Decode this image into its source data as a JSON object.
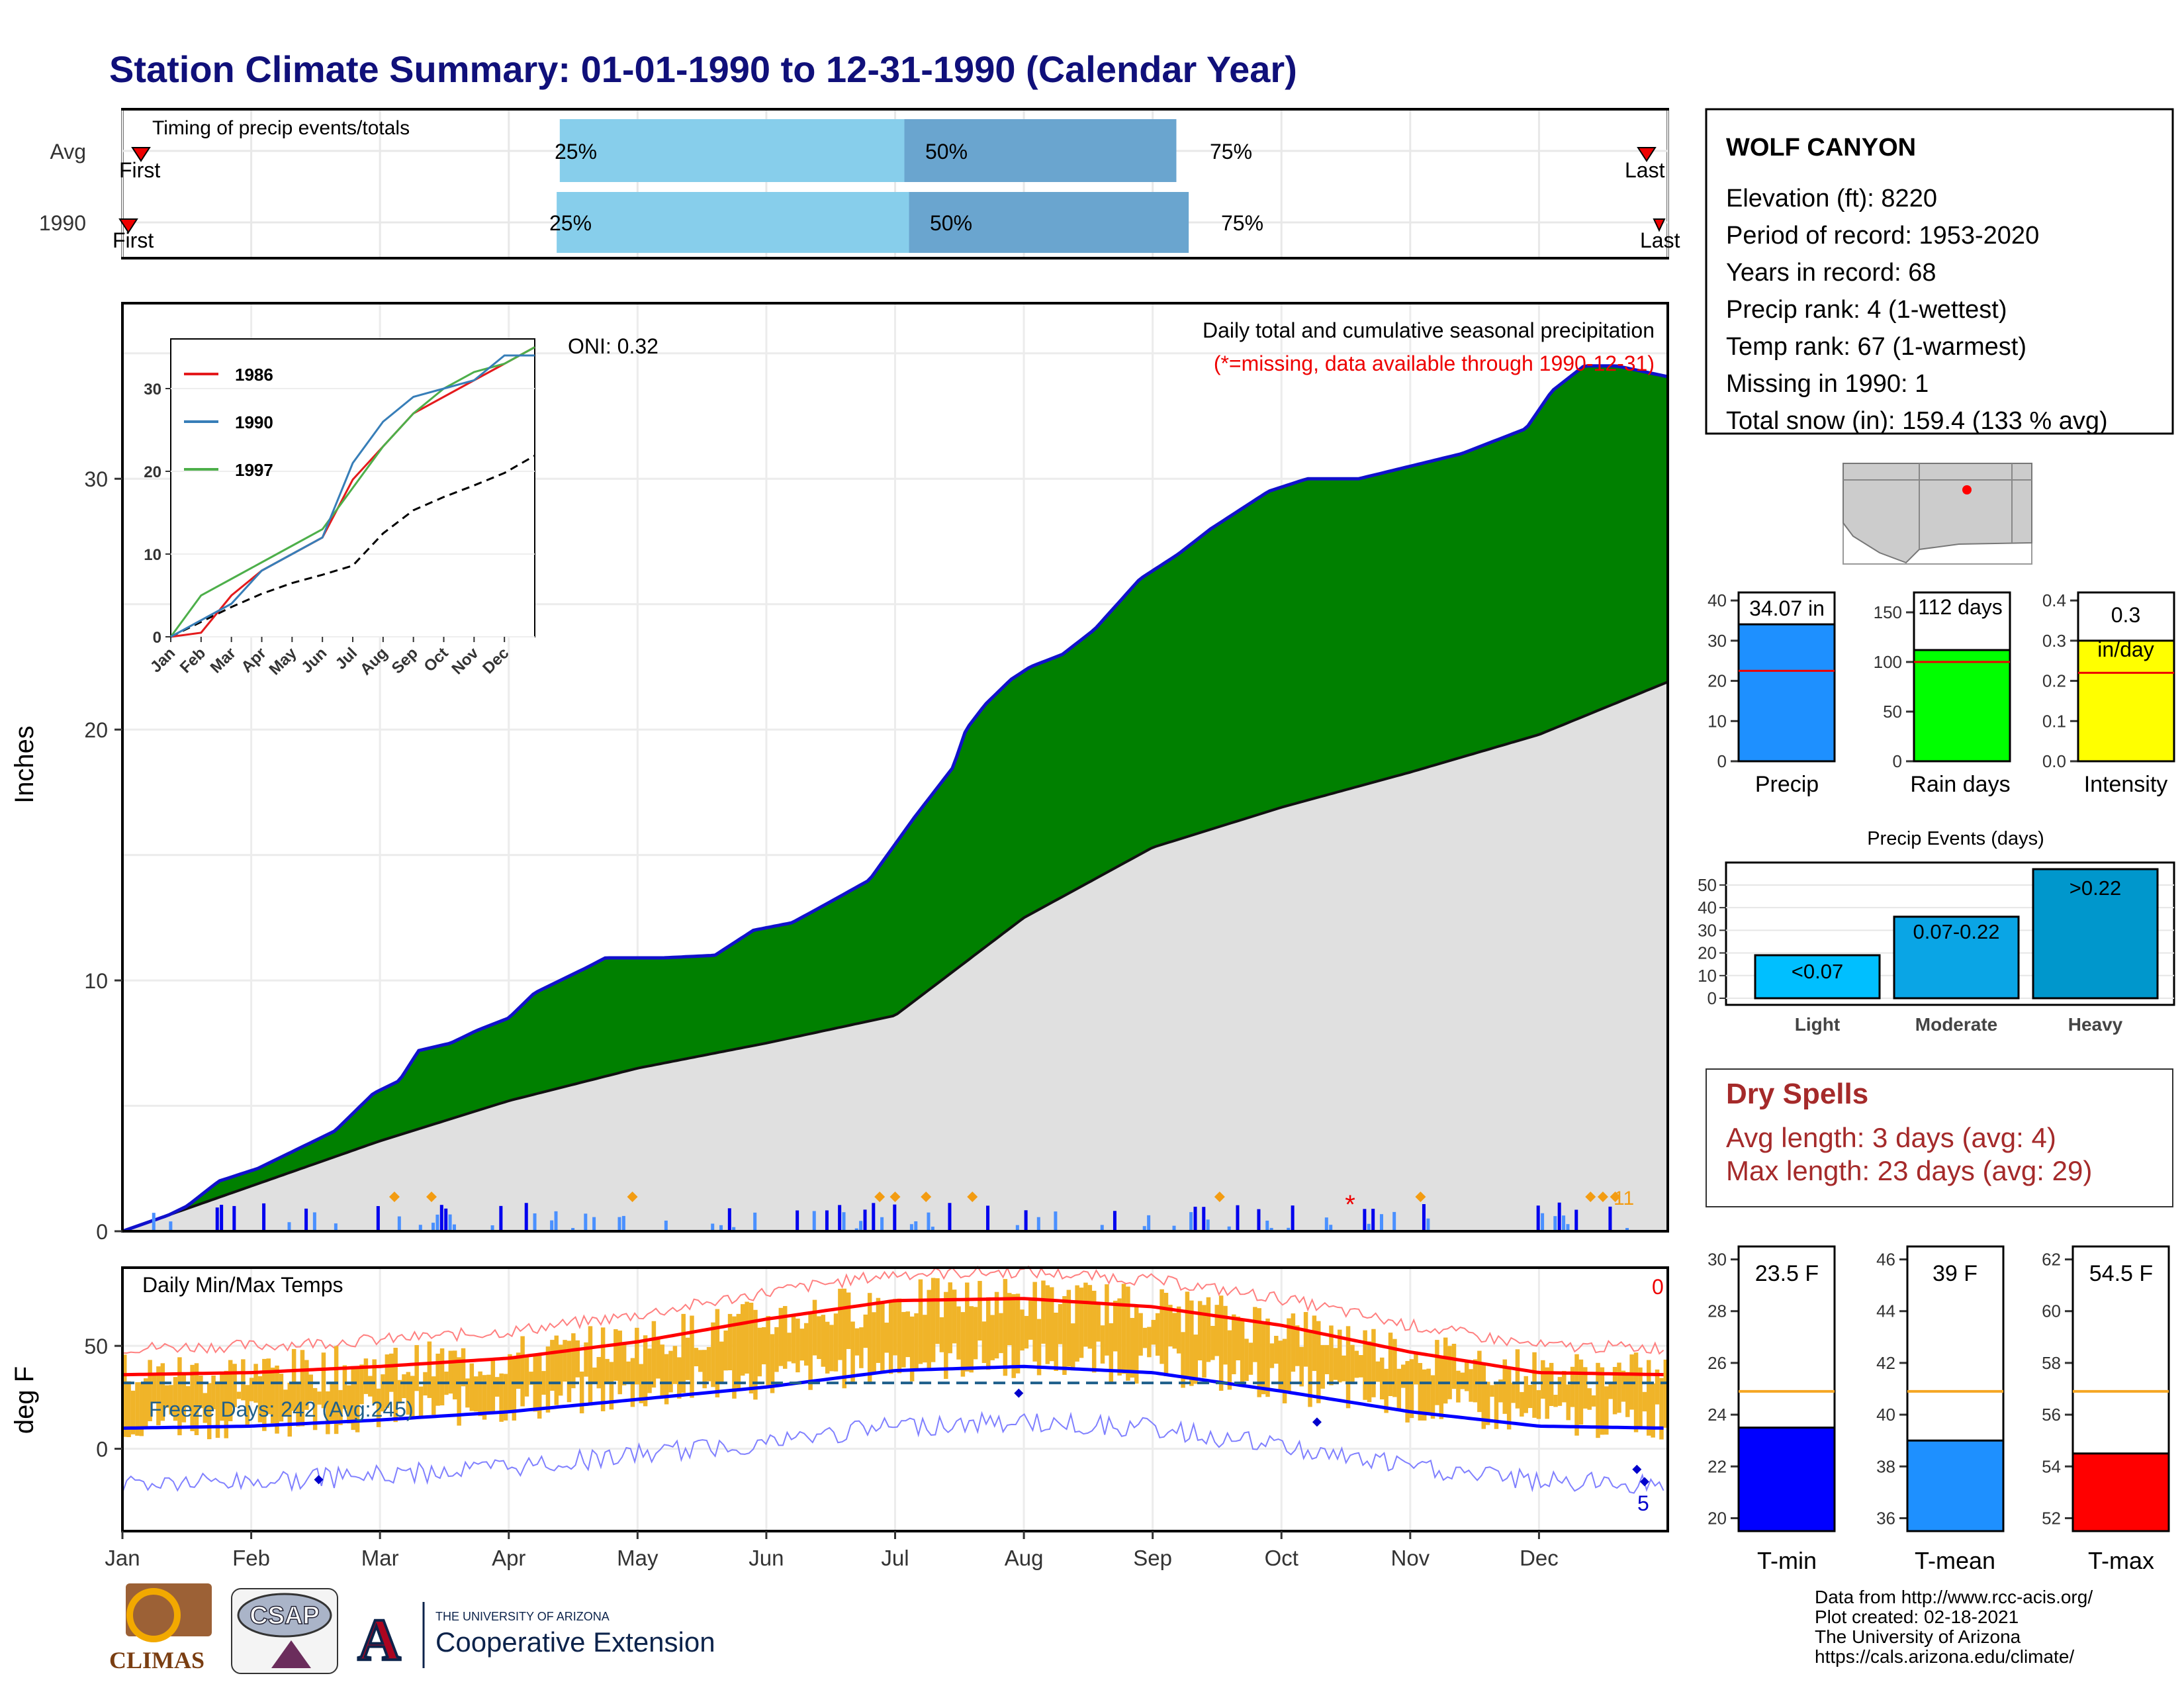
{
  "title": "Station Climate Summary: 01-01-1990 to 12-31-1990 (Calendar Year)",
  "months": [
    "Jan",
    "Feb",
    "Mar",
    "Apr",
    "May",
    "Jun",
    "Jul",
    "Aug",
    "Sep",
    "Oct",
    "Nov",
    "Dec"
  ],
  "timing": {
    "label": "Timing of precip events/totals",
    "rows": [
      {
        "name": "Avg",
        "first_label": "First",
        "last_label": "Last",
        "p25": "25%",
        "p50": "50%",
        "p75": "75%"
      },
      {
        "name": "1990",
        "first_label": "First",
        "last_label": "Last",
        "p25": "25%",
        "p50": "50%",
        "p75": "75%"
      }
    ]
  },
  "precip_panel": {
    "ylabel": "Inches",
    "yticks": [
      "0",
      "10",
      "20",
      "30"
    ],
    "oni": "ONI: 0.32",
    "subtitle": "Daily total and cumulative seasonal precipitation",
    "missing_note": "(*=missing, data available through 1990-12-31)",
    "missing_marker": "*",
    "orange_label": "11"
  },
  "inset": {
    "yticks": [
      "0",
      "10",
      "20",
      "30"
    ],
    "months": [
      "Jan",
      "Feb",
      "Mar",
      "Apr",
      "May",
      "Jun",
      "Jul",
      "Aug",
      "Sep",
      "Oct",
      "Nov",
      "Dec"
    ],
    "legend": [
      "1986",
      "1990",
      "1997"
    ]
  },
  "temp_panel": {
    "ylabel": "deg F",
    "label": "Daily Min/Max Temps",
    "yticks": [
      "0",
      "50"
    ],
    "freeze_days": "Freeze Days: 242 (Avg:245)",
    "red_count": "0",
    "blue_count": "5"
  },
  "station": {
    "name": "WOLF CANYON",
    "lines": [
      "Elevation (ft): 8220",
      "Period of record: 1953-2020",
      "Years in record: 68",
      "Precip rank: 4 (1-wettest)",
      "Temp rank: 67 (1-warmest)",
      "Missing in 1990: 1",
      "Total snow (in): 159.4 (133 % avg)"
    ]
  },
  "bars": [
    {
      "label": "Precip",
      "value_text": "34.07 in",
      "yticks": [
        "0",
        "10",
        "20",
        "30",
        "40"
      ]
    },
    {
      "label": "Rain days",
      "value_text": "112 days",
      "yticks": [
        "0",
        "50",
        "100",
        "150"
      ]
    },
    {
      "label": "Intensity",
      "value_text": "0.3",
      "value_text2": "in/day",
      "yticks": [
        "0.0",
        "0.1",
        "0.2",
        "0.3",
        "0.4"
      ]
    }
  ],
  "events": {
    "title": "Precip Events (days)",
    "yticks": [
      "0",
      "10",
      "20",
      "30",
      "40",
      "50"
    ],
    "categories": [
      "Light",
      "Moderate",
      "Heavy"
    ],
    "labels": [
      "<0.07",
      "0.07-0.22",
      ">0.22"
    ]
  },
  "dry_spells": {
    "title": "Dry Spells",
    "avg": "Avg length: 3 days (avg: 4)",
    "max": "Max length: 23 days (avg: 29)"
  },
  "temp_bars": [
    {
      "label": "T-min",
      "value_text": "23.5 F",
      "yticks": [
        "20",
        "22",
        "24",
        "26",
        "28",
        "30"
      ]
    },
    {
      "label": "T-mean",
      "value_text": "39 F",
      "yticks": [
        "36",
        "38",
        "40",
        "42",
        "44",
        "46"
      ]
    },
    {
      "label": "T-max",
      "value_text": "54.5 F",
      "yticks": [
        "52",
        "54",
        "56",
        "58",
        "60",
        "62"
      ]
    }
  ],
  "credits": [
    "Data from http://www.rcc-acis.org/",
    "Plot created: 02-18-2021",
    "The University of Arizona",
    "https://cals.arizona.edu/climate/"
  ],
  "logos": {
    "climas": "CLIMAS",
    "csap": "CSAP",
    "ua_line1": "THE UNIVERSITY OF ARIZONA",
    "ua_line2": "Cooperative Extension"
  },
  "colors": {
    "title": "#10107a",
    "cum_fill": "#008000",
    "cum_line": "#0000cc",
    "avg_fill": "#e0e0e0",
    "bar_lightblue": "#87ceeb",
    "bar_steel": "#6aa5cf",
    "temp_bar": "#f0b429",
    "red": "#ff0000",
    "blue": "#0000ff"
  },
  "chart_data": [
    {
      "type": "line",
      "title": "Daily total and cumulative seasonal precipitation",
      "ylabel": "Inches",
      "ylim": [
        0,
        37
      ],
      "x_unit": "month",
      "series": [
        {
          "name": "cumulative 1990",
          "x": [
            0,
            0.3,
            0.5,
            0.75,
            1.05,
            1.25,
            1.45,
            1.65,
            1.95,
            2.15,
            2.3,
            2.55,
            2.75,
            3.0,
            3.2,
            3.4,
            3.6,
            3.75,
            3.95,
            4.2,
            4.6,
            4.9,
            5.2,
            5.45,
            5.8,
            6.15,
            6.3,
            6.45,
            6.55,
            6.7,
            6.9,
            7.05,
            7.3,
            7.55,
            7.9,
            8.2,
            8.45,
            8.6,
            8.9,
            9.2,
            9.6,
            10.0,
            10.4,
            10.9,
            11.1,
            11.35,
            11.6,
            12.0
          ],
          "y": [
            0,
            0.5,
            1,
            2,
            2.5,
            3,
            3.5,
            4,
            5.5,
            6,
            7.2,
            7.5,
            8,
            8.5,
            9.5,
            10,
            10.5,
            10.9,
            10.9,
            10.9,
            11,
            12,
            12.3,
            13,
            14,
            16.5,
            17.5,
            18.5,
            20,
            21,
            22,
            22.5,
            23,
            24,
            26,
            27,
            28,
            28.5,
            29.5,
            30,
            30,
            30.5,
            31,
            32,
            33.5,
            34.5,
            34.5,
            34.07
          ]
        },
        {
          "name": "average",
          "x": [
            0,
            1,
            2,
            3,
            4,
            5,
            6,
            7,
            8,
            9,
            10,
            11,
            12
          ],
          "y": [
            0,
            1.8,
            3.6,
            5.2,
            6.5,
            7.5,
            8.6,
            12.5,
            15.3,
            16.9,
            18.3,
            19.8,
            21.9
          ]
        }
      ]
    },
    {
      "type": "line",
      "title": "",
      "ylim": [
        0,
        36
      ],
      "categories": [
        "Jan",
        "Feb",
        "Mar",
        "Apr",
        "May",
        "Jun",
        "Jul",
        "Aug",
        "Sep",
        "Oct",
        "Nov",
        "Dec"
      ],
      "series": [
        {
          "name": "1986",
          "x": [
            0,
            1,
            2,
            3,
            4,
            5,
            6,
            7,
            8,
            9,
            10,
            11,
            12
          ],
          "y": [
            0,
            0.5,
            5,
            8,
            10,
            12,
            19,
            23,
            27,
            29,
            31,
            33,
            35
          ]
        },
        {
          "name": "1990",
          "x": [
            0,
            1,
            2,
            3,
            4,
            5,
            6,
            7,
            8,
            9,
            10,
            11,
            12
          ],
          "y": [
            0,
            2,
            4,
            8,
            10,
            12,
            21,
            26,
            29,
            30,
            31,
            34,
            34
          ]
        },
        {
          "name": "1997",
          "x": [
            0,
            1,
            2,
            3,
            4,
            5,
            6,
            7,
            8,
            9,
            10,
            11,
            12
          ],
          "y": [
            0,
            5,
            7,
            9,
            11,
            13,
            18,
            23,
            27,
            30,
            32,
            33,
            35
          ]
        },
        {
          "name": "average",
          "x": [
            0,
            1,
            2,
            3,
            4,
            5,
            6,
            7,
            8,
            9,
            10,
            11,
            12
          ],
          "y": [
            0,
            1.8,
            3.6,
            5.2,
            6.5,
            7.5,
            8.6,
            12.5,
            15.3,
            16.9,
            18.3,
            19.8,
            21.9
          ]
        }
      ]
    },
    {
      "type": "line",
      "title": "Daily Min/Max Temps",
      "ylabel": "deg F",
      "ylim": [
        -40,
        88
      ],
      "series": [
        {
          "name": "avg max",
          "x": [
            0,
            1,
            2,
            3,
            4,
            5,
            6,
            7,
            8,
            9,
            10,
            11,
            12
          ],
          "y": [
            36,
            37,
            40,
            44,
            52,
            63,
            72,
            73,
            69,
            60,
            47,
            37,
            36
          ]
        },
        {
          "name": "avg min",
          "x": [
            0,
            1,
            2,
            3,
            4,
            5,
            6,
            7,
            8,
            9,
            10,
            11,
            12
          ],
          "y": [
            10,
            11,
            14,
            18,
            24,
            30,
            38,
            40,
            37,
            28,
            18,
            11,
            10
          ]
        }
      ],
      "freeze_threshold": 32
    },
    {
      "type": "bar",
      "title": "",
      "categories": [
        "Precip"
      ],
      "values": [
        34.07
      ],
      "average": 22.5,
      "ylim": [
        0,
        42
      ]
    },
    {
      "type": "bar",
      "title": "",
      "categories": [
        "Rain days"
      ],
      "values": [
        112
      ],
      "average": 100,
      "ylim": [
        0,
        170
      ]
    },
    {
      "type": "bar",
      "title": "",
      "categories": [
        "Intensity"
      ],
      "values": [
        0.3
      ],
      "average": 0.22,
      "ylim": [
        0,
        0.42
      ]
    },
    {
      "type": "bar",
      "title": "Precip Events (days)",
      "categories": [
        "Light",
        "Moderate",
        "Heavy"
      ],
      "values": [
        19,
        36,
        57
      ],
      "ylim": [
        0,
        57
      ]
    },
    {
      "type": "bar",
      "title": "",
      "categories": [
        "T-min",
        "T-mean",
        "T-max"
      ],
      "values": [
        23.5,
        39,
        54.5
      ],
      "averages": [
        24.9,
        40.9,
        56.9
      ],
      "ylims": [
        [
          19.5,
          30.5
        ],
        [
          35.5,
          46.5
        ],
        [
          51.5,
          62.5
        ]
      ]
    }
  ]
}
